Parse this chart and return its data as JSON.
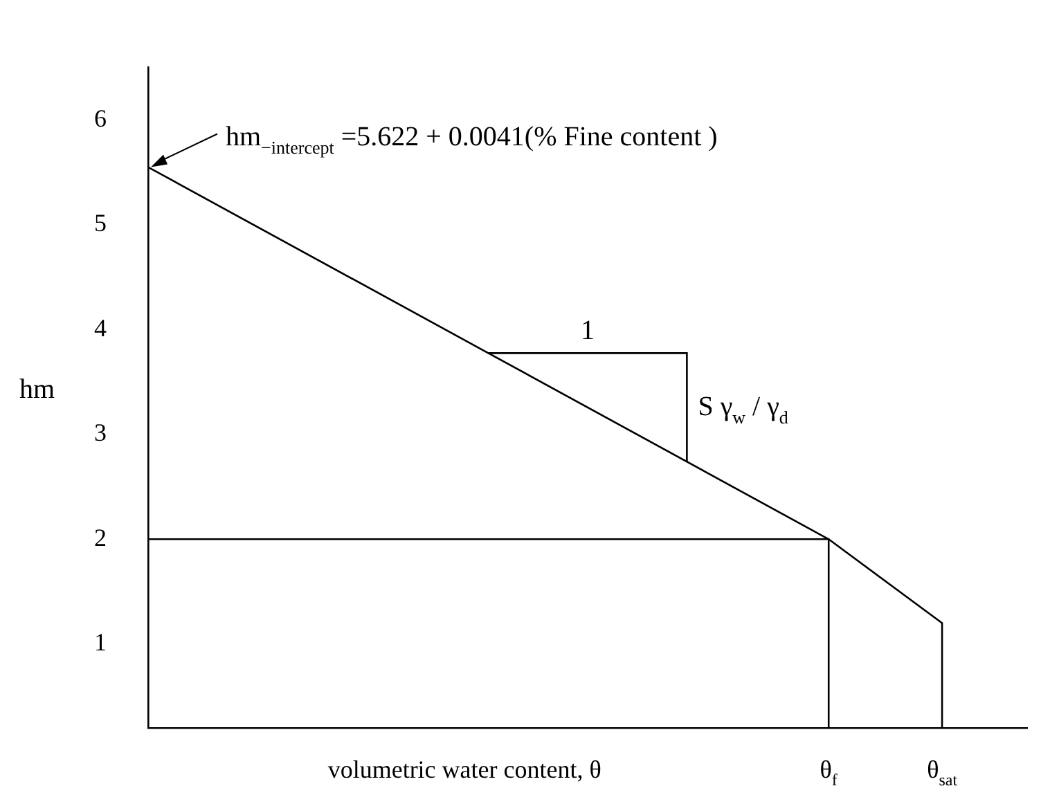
{
  "chart_data": {
    "type": "line",
    "xlabel": "volumetric water content, θ",
    "ylabel": "hm",
    "categories": [
      null,
      null,
      null,
      null,
      null,
      null,
      null,
      null,
      null,
      null,
      null,
      null,
      null,
      null,
      null,
      null,
      null,
      null,
      null,
      null,
      null,
      null,
      null,
      null,
      "θ$_{f}$",
      null,
      null,
      null,
      "θ$_{sat}$",
      null,
      null,
      null
    ],
    "ylim": [
      0.2,
      6.5
    ],
    "yticks": [
      1,
      2,
      3,
      4,
      5,
      6
    ],
    "series": [
      {
        "color": "#000000",
        "values": [
          5.55,
          null,
          null,
          null,
          null,
          null,
          null,
          null,
          null,
          null,
          null,
          null,
          null,
          null,
          null,
          null,
          null,
          null,
          null,
          null,
          null,
          null,
          null,
          null,
          2,
          null,
          null,
          null,
          1.2,
          null,
          null,
          null
        ]
      },
      {
        "color": "#000000",
        "values": [
          2,
          null,
          null,
          null,
          null,
          null,
          null,
          null,
          null,
          null,
          null,
          null,
          null,
          null,
          null,
          null,
          null,
          null,
          null,
          null,
          null,
          null,
          null,
          null,
          2,
          null,
          null,
          null,
          null,
          null,
          null,
          null
        ]
      },
      {
        "color": "#000000",
        "x": [
          "θ$_{sat}$",
          "θ$_{sat}$"
        ],
        "values": [
          1.2,
          0.2
        ]
      },
      {
        "color": "#000000",
        "x": [
          "θ$_{f}$",
          "θ$_{f}$"
        ],
        "values": [
          2,
          0.2
        ]
      }
    ],
    "annotations": [
      "hm$_{−intercept}$ =5.622 + 0.0041(% Fine content )",
      "1",
      "S γ$_{w}$ / γ$_{d}$"
    ],
    "grid": false,
    "legend": false,
    "marker": "none",
    "line_style": "solid"
  }
}
